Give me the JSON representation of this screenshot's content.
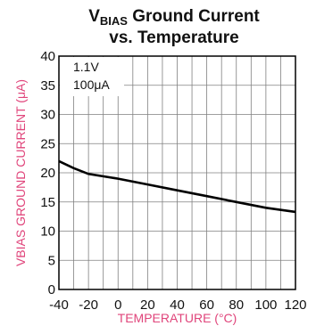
{
  "chart_data": {
    "type": "line",
    "title_main": "V",
    "title_sub": "BIAS",
    "title_rest": " Ground Current",
    "title_line2": "vs. Temperature",
    "xlabel": "TEMPERATURE (°C)",
    "ylabel": "VBIAS GROUND CURRENT (μA)",
    "xlim": [
      -40,
      120
    ],
    "ylim": [
      0,
      40
    ],
    "x_ticks": [
      -40,
      -20,
      0,
      20,
      40,
      60,
      80,
      100,
      120
    ],
    "y_ticks": [
      0,
      5,
      10,
      15,
      20,
      25,
      30,
      35,
      40
    ],
    "grid": true,
    "annotations": [
      "1.1V",
      "100μA"
    ],
    "series": [
      {
        "x": [
          -40,
          -30,
          -20,
          0,
          20,
          40,
          60,
          80,
          100,
          120
        ],
        "y": [
          22.0,
          20.8,
          19.8,
          19.0,
          18.0,
          17.0,
          16.0,
          15.0,
          14.0,
          13.3
        ]
      }
    ],
    "colors": {
      "line": "#000000",
      "grid": "#808080",
      "axis_title": "#e0457b"
    }
  }
}
